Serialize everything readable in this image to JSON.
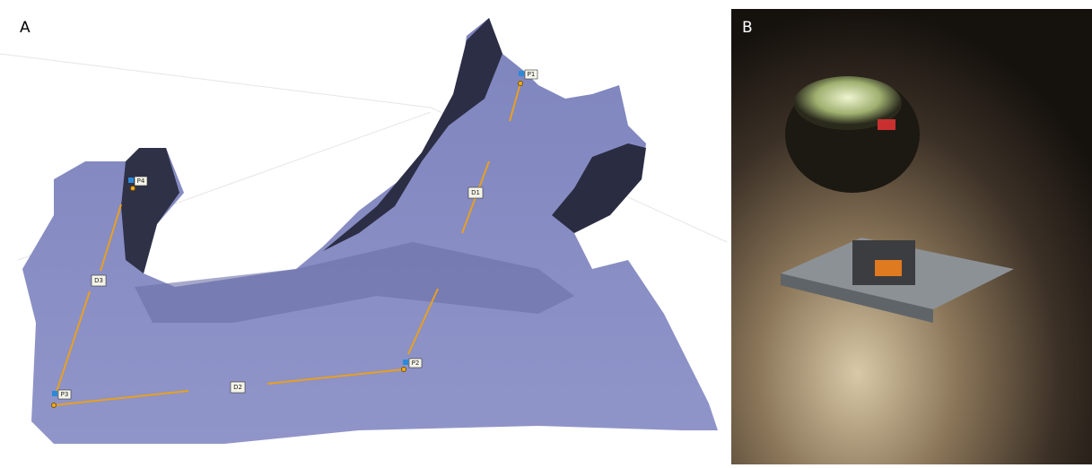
{
  "panels": [
    {
      "label": "A",
      "markers": [
        "P1",
        "P2",
        "P3",
        "P4"
      ],
      "distances": [
        "D1",
        "D2",
        "D3"
      ]
    },
    {
      "label": "B"
    }
  ]
}
